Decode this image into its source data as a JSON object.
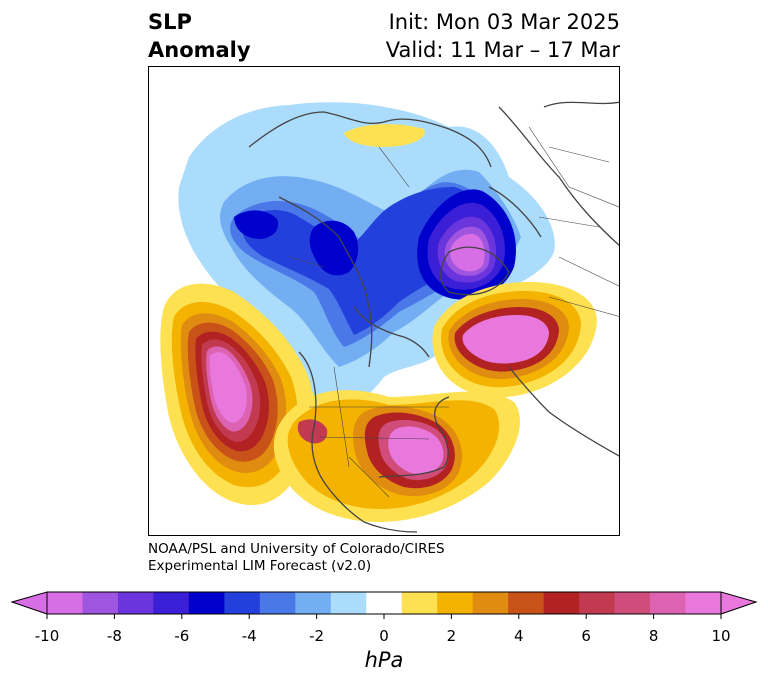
{
  "header": {
    "title_line1": "SLP",
    "title_line2": "Anomaly",
    "init": "Init: Mon 03 Mar 2025",
    "valid": "Valid: 11 Mar – 17 Mar"
  },
  "credit": {
    "line1": "NOAA/PSL and University of Colorado/CIRES",
    "line2": "Experimental LIM Forecast (v2.0)"
  },
  "colorbar": {
    "unit": "hPa",
    "ticks": [
      "-10",
      "-8",
      "-6",
      "-4",
      "-2",
      "0",
      "2",
      "4",
      "6",
      "8",
      "10"
    ],
    "extend": "both",
    "colors": [
      "#d76ee6",
      "#a055e0",
      "#6a35dc",
      "#3a1fd6",
      "#0000cd",
      "#2440dc",
      "#4a78e8",
      "#74aef2",
      "#acdcfc",
      "#ffffff",
      "#fee150",
      "#f4b300",
      "#e08c10",
      "#c85218",
      "#b22222",
      "#c23a50",
      "#d04c7a",
      "#de62b2",
      "#e878dc"
    ],
    "neg_extend_color": "#d76ee6",
    "pos_extend_color": "#e878dc"
  },
  "map": {
    "projection": "north-polar stereographic",
    "field": "sea level pressure anomaly (hPa)",
    "features": [
      {
        "name": "Aleutian/NE Pacific high",
        "anomaly_hpa": 10
      },
      {
        "name": "eastern US high",
        "anomaly_hpa": 10
      },
      {
        "name": "North Atlantic high",
        "anomaly_hpa": 10
      },
      {
        "name": "Norwegian Sea / Scandinavia low",
        "anomaly_hpa": -10
      },
      {
        "name": "Siberian low",
        "anomaly_hpa": -6
      },
      {
        "name": "Arctic / northern Canada low",
        "anomaly_hpa": -6
      },
      {
        "name": "Alaska low",
        "anomaly_hpa": -6
      }
    ]
  }
}
